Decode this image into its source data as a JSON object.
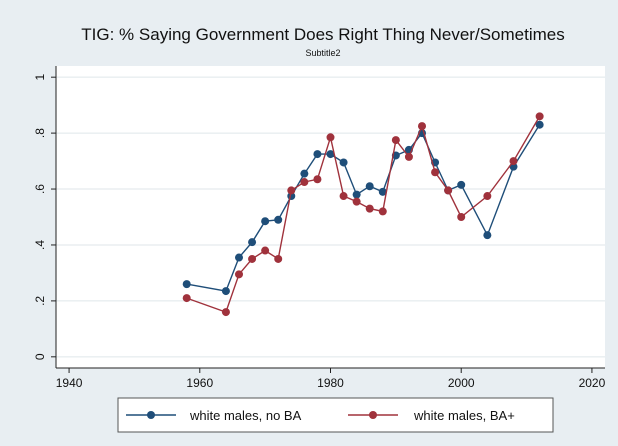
{
  "chart_data": {
    "type": "line",
    "title": "TIG: % Saying Government Does Right Thing Never/Sometimes",
    "subtitle": "Subtitle2",
    "xlabel": "",
    "ylabel": "",
    "xlim": [
      1938,
      2022
    ],
    "ylim": [
      -0.04,
      1.04
    ],
    "xticks": [
      1940,
      1960,
      1980,
      2000,
      2020
    ],
    "xtick_labels": [
      "1940",
      "1960",
      "1980",
      "2000",
      "2020"
    ],
    "yticks": [
      0,
      0.2,
      0.4,
      0.6,
      0.8,
      1
    ],
    "ytick_labels": [
      "0",
      ".2",
      ".4",
      ".6",
      ".8",
      "1"
    ],
    "grid": "horizontal",
    "legend_position": "bottom",
    "series": [
      {
        "name": "white males, no BA",
        "color": "#1f4e79",
        "x": [
          1958,
          1964,
          1966,
          1968,
          1970,
          1972,
          1974,
          1976,
          1978,
          1980,
          1982,
          1984,
          1986,
          1988,
          1990,
          1992,
          1994,
          1996,
          1998,
          2000,
          2004,
          2008,
          2012
        ],
        "y": [
          0.26,
          0.235,
          0.355,
          0.41,
          0.485,
          0.49,
          0.575,
          0.655,
          0.725,
          0.725,
          0.695,
          0.58,
          0.61,
          0.59,
          0.72,
          0.74,
          0.8,
          0.695,
          0.595,
          0.615,
          0.435,
          0.68,
          0.83
        ]
      },
      {
        "name": "white males, BA+",
        "color": "#a0323c",
        "x": [
          1958,
          1964,
          1966,
          1968,
          1970,
          1972,
          1974,
          1976,
          1978,
          1980,
          1982,
          1984,
          1986,
          1988,
          1990,
          1992,
          1994,
          1996,
          1998,
          2000,
          2004,
          2008,
          2012
        ],
        "y": [
          0.21,
          0.16,
          0.295,
          0.35,
          0.38,
          0.35,
          0.595,
          0.625,
          0.635,
          0.785,
          0.575,
          0.555,
          0.53,
          0.52,
          0.775,
          0.715,
          0.825,
          0.66,
          0.595,
          0.5,
          0.575,
          0.7,
          0.86
        ]
      }
    ]
  }
}
